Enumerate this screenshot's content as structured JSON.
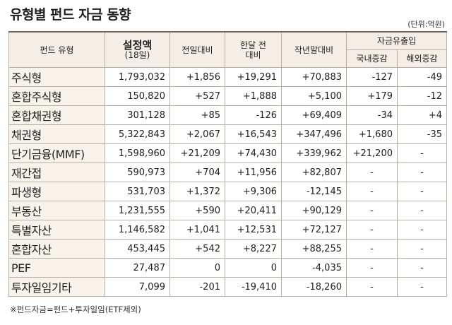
{
  "header": {
    "title": "유형별 펀드 자금 동향",
    "unit": "(단위:억원)"
  },
  "table": {
    "columns": {
      "type": "펀드 유형",
      "amount": {
        "main": "설정액",
        "sub": "(18일)"
      },
      "day": "전일대비",
      "month": [
        "한달 전",
        "대비"
      ],
      "year": "작년말대비",
      "flow": "자금유출입",
      "domestic": "국내증감",
      "overseas": "해외증감"
    },
    "rows": [
      [
        "주식형",
        "1,793,032",
        "+1,856",
        "+19,291",
        "+70,883",
        "-127",
        "-49"
      ],
      [
        "혼합주식형",
        "150,820",
        "+527",
        "+1,888",
        "+5,100",
        "+179",
        "-12"
      ],
      [
        "혼합채권형",
        "301,128",
        "+85",
        "-126",
        "+69,409",
        "-34",
        "+4"
      ],
      [
        "채권형",
        "5,322,843",
        "+2,067",
        "+16,543",
        "+347,496",
        "+1,680",
        "-35"
      ],
      [
        "단기금융(MMF)",
        "1,598,960",
        "+21,209",
        "+74,430",
        "+339,962",
        "+21,200",
        "-"
      ],
      [
        "재간접",
        "590,973",
        "+704",
        "+11,956",
        "+82,807",
        "-",
        "-"
      ],
      [
        "파생형",
        "531,703",
        "+1,372",
        "+9,306",
        "-12,145",
        "-",
        "-"
      ],
      [
        "부동산",
        "1,231,555",
        "+590",
        "+20,411",
        "+90,129",
        "-",
        "-"
      ],
      [
        "특별자산",
        "1,146,582",
        "+1,041",
        "+12,531",
        "+72,127",
        "-",
        "-"
      ],
      [
        "혼합자산",
        "453,445",
        "+542",
        "+8,227",
        "+88,255",
        "-",
        "-"
      ],
      [
        "PEF",
        "27,487",
        "0",
        "0",
        "-4,035",
        "-",
        "-"
      ],
      [
        "투자일임기타",
        "7,099",
        "-201",
        "-19,410",
        "-18,260",
        "-",
        "-"
      ]
    ]
  },
  "footnote": "※펀드자금=펀드+투자일임(ETF제외)"
}
